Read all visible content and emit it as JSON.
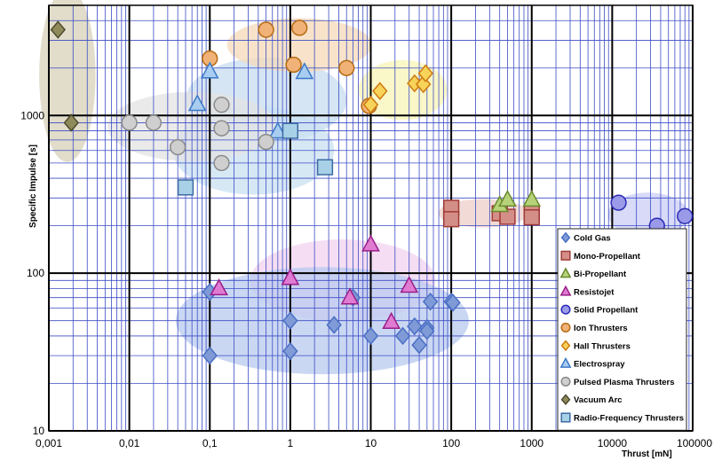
{
  "chart_data": {
    "type": "scatter",
    "title": "",
    "xlabel": "Thrust [mN]",
    "ylabel": "Specific Impulse [s]",
    "xscale": "log",
    "yscale": "log",
    "xlim": [
      0.001,
      100000
    ],
    "ylim": [
      10,
      5000
    ],
    "x_tick_labels": [
      "0,001",
      "0,01",
      "0,1",
      "1",
      "10",
      "100",
      "1000",
      "10000",
      "100000"
    ],
    "y_tick_labels": [
      "10",
      "100",
      "1000"
    ],
    "grid": true,
    "legend_position": "bottom-right",
    "series": [
      {
        "name": "Cold Gas",
        "marker": "diamond",
        "color": "#4a6fc4",
        "fill": "#7f9ad6",
        "points": [
          [
            0.1,
            76
          ],
          [
            0.1,
            30
          ],
          [
            1,
            50
          ],
          [
            1,
            32
          ],
          [
            3.5,
            47
          ],
          [
            6,
            70
          ],
          [
            10,
            40
          ],
          [
            25,
            40
          ],
          [
            35,
            46
          ],
          [
            40,
            35
          ],
          [
            50,
            45
          ],
          [
            50,
            43
          ],
          [
            55,
            66
          ],
          [
            100,
            66
          ],
          [
            105,
            65
          ]
        ]
      },
      {
        "name": "Mono-Propellant",
        "marker": "square",
        "color": "#a03b36",
        "fill": "#d48e88",
        "points": [
          [
            100,
            260
          ],
          [
            100,
            220
          ],
          [
            400,
            240
          ],
          [
            500,
            228
          ],
          [
            1000,
            240
          ],
          [
            1000,
            226
          ]
        ]
      },
      {
        "name": "Bi-Propellant",
        "marker": "triangle",
        "color": "#6a8a2c",
        "fill": "#b6d37a",
        "points": [
          [
            400,
            270
          ],
          [
            500,
            292
          ],
          [
            1000,
            292
          ]
        ]
      },
      {
        "name": "Resistojet",
        "marker": "triangle",
        "color": "#9a1e8a",
        "fill": "#e07bd2",
        "points": [
          [
            0.13,
            80
          ],
          [
            1,
            93
          ],
          [
            5.5,
            70
          ],
          [
            10,
            152
          ],
          [
            18,
            49
          ],
          [
            30,
            83
          ]
        ]
      },
      {
        "name": "Solid Propellant",
        "marker": "circle",
        "color": "#2b2bb5",
        "fill": "#9a9ae8",
        "points": [
          [
            12000,
            280
          ],
          [
            36000,
            200
          ],
          [
            80000,
            230
          ]
        ]
      },
      {
        "name": "Ion Thrusters",
        "marker": "circle",
        "color": "#b56a14",
        "fill": "#f0b277",
        "points": [
          [
            0.1,
            2300
          ],
          [
            0.5,
            3500
          ],
          [
            1.1,
            2100
          ],
          [
            1.3,
            3600
          ],
          [
            5,
            2000
          ],
          [
            9.5,
            1150
          ]
        ]
      },
      {
        "name": "Hall Thrusters",
        "marker": "diamond",
        "color": "#cc7a10",
        "fill": "#f8d35a",
        "points": [
          [
            10,
            1170
          ],
          [
            13,
            1430
          ],
          [
            35,
            1600
          ],
          [
            45,
            1580
          ],
          [
            48,
            1850
          ]
        ]
      },
      {
        "name": "Electrospray",
        "marker": "triangle",
        "color": "#3b78c8",
        "fill": "#a9cdf0",
        "points": [
          [
            0.07,
            1180
          ],
          [
            0.1,
            1900
          ],
          [
            0.7,
            790
          ],
          [
            1.5,
            1880
          ]
        ]
      },
      {
        "name": "Pulsed Plasma Thrusters",
        "marker": "circle",
        "color": "#8a8a8a",
        "fill": "#cfcfcf",
        "points": [
          [
            0.01,
            900
          ],
          [
            0.02,
            900
          ],
          [
            0.04,
            630
          ],
          [
            0.14,
            1170
          ],
          [
            0.14,
            830
          ],
          [
            0.14,
            500
          ],
          [
            0.5,
            680
          ]
        ]
      },
      {
        "name": "Vacuum Arc",
        "marker": "diamond",
        "color": "#4d4a2e",
        "fill": "#8f8a5a",
        "points": [
          [
            0.0013,
            3500
          ],
          [
            0.0019,
            900
          ]
        ]
      },
      {
        "name": "Radio-Frequency Thrusters",
        "marker": "square",
        "color": "#3c6aa5",
        "fill": "#a8d0e6",
        "points": [
          [
            0.05,
            350
          ],
          [
            1,
            800
          ],
          [
            2.7,
            470
          ]
        ]
      }
    ]
  }
}
